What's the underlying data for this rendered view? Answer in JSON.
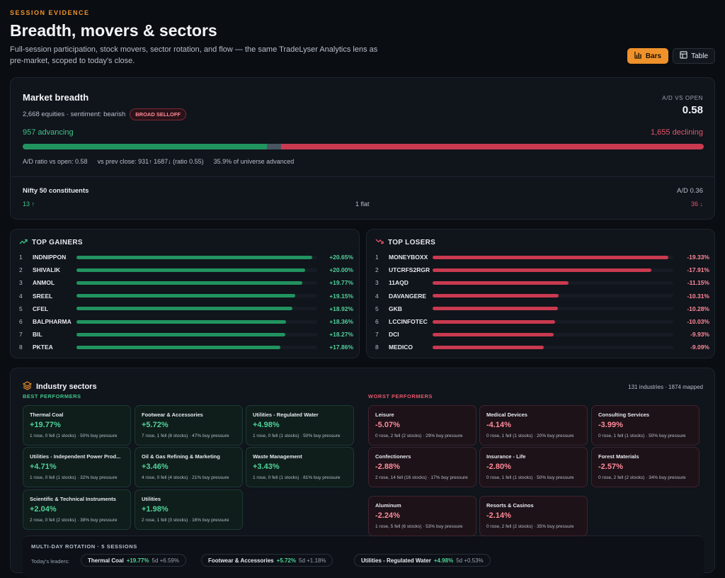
{
  "header": {
    "eyebrow": "SESSION EVIDENCE",
    "title": "Breadth, movers & sectors",
    "subtitle": "Full-session participation, stock movers, sector rotation, and flow — the same TradeLyser Analytics lens as pre-market, scoped to today's close.",
    "view_bars": "Bars",
    "view_table": "Table"
  },
  "breadth": {
    "title": "Market breadth",
    "subtitle": "2,668 equities · sentiment: bearish",
    "badge": "BROAD SELLOFF",
    "ad_label": "A/D VS OPEN",
    "ad_value": "0.58",
    "advancing_label": "957 advancing",
    "declining_label": "1,655 declining",
    "advancing": 957,
    "flat": 56,
    "declining": 1655,
    "meta": [
      "A/D ratio vs open: 0.58",
      "vs prev close: 931↑ 1687↓ (ratio 0.55)",
      "35.9% of universe advanced"
    ],
    "nifty_title": "Nifty 50 constituents",
    "nifty_ad": "A/D 0.36",
    "nifty_up": "13 ↑",
    "nifty_flat": "1 flat",
    "nifty_down": "36 ↓"
  },
  "gainers": {
    "title": "TOP GAINERS",
    "items": [
      {
        "rank": "1",
        "symbol": "INDNIPPON",
        "pct": "+20.65%",
        "value": 20.65
      },
      {
        "rank": "2",
        "symbol": "SHIVALIK",
        "pct": "+20.00%",
        "value": 20.0
      },
      {
        "rank": "3",
        "symbol": "ANMOL",
        "pct": "+19.77%",
        "value": 19.77
      },
      {
        "rank": "4",
        "symbol": "SREEL",
        "pct": "+19.15%",
        "value": 19.15
      },
      {
        "rank": "5",
        "symbol": "CFEL",
        "pct": "+18.92%",
        "value": 18.92
      },
      {
        "rank": "6",
        "symbol": "BALPHARMA",
        "pct": "+18.36%",
        "value": 18.36
      },
      {
        "rank": "7",
        "symbol": "BIL",
        "pct": "+18.27%",
        "value": 18.27
      },
      {
        "rank": "8",
        "symbol": "PKTEA",
        "pct": "+17.86%",
        "value": 17.86
      }
    ]
  },
  "losers": {
    "title": "TOP LOSERS",
    "items": [
      {
        "rank": "1",
        "symbol": "MONEYBOXX",
        "pct": "-19.33%",
        "value": 19.33
      },
      {
        "rank": "2",
        "symbol": "UTCRFS2RGR",
        "pct": "-17.91%",
        "value": 17.91
      },
      {
        "rank": "3",
        "symbol": "11AQD",
        "pct": "-11.15%",
        "value": 11.15
      },
      {
        "rank": "4",
        "symbol": "DAVANGERE",
        "pct": "-10.31%",
        "value": 10.31
      },
      {
        "rank": "5",
        "symbol": "GKB",
        "pct": "-10.28%",
        "value": 10.28
      },
      {
        "rank": "6",
        "symbol": "LCCINFOTEC",
        "pct": "-10.03%",
        "value": 10.03
      },
      {
        "rank": "7",
        "symbol": "DCI",
        "pct": "-9.93%",
        "value": 9.93
      },
      {
        "rank": "8",
        "symbol": "MEDICO",
        "pct": "-9.09%",
        "value": 9.09
      }
    ]
  },
  "sectors": {
    "title": "Industry sectors",
    "count": "131 industries · 1874 mapped",
    "best_label": "BEST PERFORMERS",
    "worst_label": "WORST PERFORMERS",
    "best": [
      {
        "name": "Thermal Coal",
        "pct": "+19.77%",
        "detail": "1 rose, 0 fell (1 stocks) · 50% buy pressure"
      },
      {
        "name": "Footwear & Accessories",
        "pct": "+5.72%",
        "detail": "7 rose, 1 fell (8 stocks) · 47% buy pressure"
      },
      {
        "name": "Utilities - Regulated Water",
        "pct": "+4.98%",
        "detail": "1 rose, 0 fell (1 stocks) · 50% buy pressure"
      },
      {
        "name": "Utilities - Independent Power Prod...",
        "pct": "+4.71%",
        "detail": "1 rose, 0 fell (1 stocks) · 32% buy pressure"
      },
      {
        "name": "Oil & Gas Refining & Marketing",
        "pct": "+3.46%",
        "detail": "4 rose, 0 fell (4 stocks) · 21% buy pressure"
      },
      {
        "name": "Waste Management",
        "pct": "+3.43%",
        "detail": "1 rose, 0 fell (1 stocks) · 81% buy pressure"
      },
      {
        "name": "Scientific & Technical Instruments",
        "pct": "+2.04%",
        "detail": "2 rose, 0 fell (2 stocks) · 38% buy pressure"
      },
      {
        "name": "Utilities",
        "pct": "+1.98%",
        "detail": "2 rose, 1 fell (3 stocks) · 16% buy pressure"
      }
    ],
    "worst": [
      {
        "name": "Leisure",
        "pct": "-5.07%",
        "detail": "0 rose, 2 fell (2 stocks) · 29% buy pressure"
      },
      {
        "name": "Medical Devices",
        "pct": "-4.14%",
        "detail": "0 rose, 1 fell (1 stocks) · 20% buy pressure"
      },
      {
        "name": "Consulting Services",
        "pct": "-3.99%",
        "detail": "0 rose, 1 fell (1 stocks) · 50% buy pressure"
      },
      {
        "name": "Confectioners",
        "pct": "-2.88%",
        "detail": "2 rose, 14 fell (16 stocks) · 17% buy pressure"
      },
      {
        "name": "Insurance - Life",
        "pct": "-2.80%",
        "detail": "0 rose, 1 fell (1 stocks) · 50% buy pressure"
      },
      {
        "name": "Forest Materials",
        "pct": "-2.57%",
        "detail": "0 rose, 2 fell (2 stocks) · 34% buy pressure"
      },
      {
        "name": "Aluminum",
        "pct": "-2.24%",
        "detail": "1 rose, 5 fell (6 stocks) · 53% buy pressure"
      },
      {
        "name": "Resorts & Casinos",
        "pct": "-2.14%",
        "detail": "0 rose, 2 fell (2 stocks) · 35% buy pressure"
      }
    ],
    "rotation_title": "MULTI-DAY ROTATION · 5 SESSIONS",
    "rotation_label": "Today's leaders:",
    "rotation": [
      {
        "name": "Thermal Coal",
        "pct": "+19.77%",
        "extra": "5d +6.59%"
      },
      {
        "name": "Footwear & Accessories",
        "pct": "+5.72%",
        "extra": "5d +1.18%"
      },
      {
        "name": "Utilities - Regulated Water",
        "pct": "+4.98%",
        "extra": "5d +0.53%"
      }
    ]
  },
  "colors": {
    "accent": "#f0922b",
    "up": "#21935f",
    "down": "#c93a50"
  }
}
